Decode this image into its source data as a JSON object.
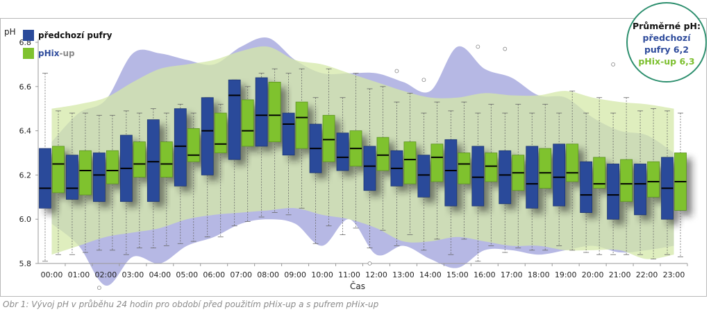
{
  "caption": "Obr 1: Vývoj pH v průběhu 24 hodin pro období před použitím pHix-up a s pufrem pHix-up",
  "badge": {
    "title": "Průměrné pH:",
    "prev_line1": "předchozí",
    "prev_line2": "pufry 6,2",
    "phix_line": "pHix-up 6,3"
  },
  "legend": {
    "prev_label": "předchozí pufry",
    "phix_label_main": "pHix",
    "phix_label_suffix": "-up"
  },
  "colors": {
    "prev": "#2a4a9a",
    "phix": "#7fc22e",
    "prev_band": "#a9abdf",
    "phix_band": "#d4e8a8",
    "overlap_band": "#9fb8a8",
    "badge_border": "#2d8f6e"
  },
  "chart_data": {
    "type": "box",
    "ylabel": "pH",
    "xlabel": "Čas",
    "ylim": [
      5.8,
      6.8
    ],
    "yticks": [
      "5.8",
      "6.0",
      "6.2",
      "6.4",
      "6.6",
      "6.8"
    ],
    "ytick_values": [
      5.8,
      6.0,
      6.2,
      6.4,
      6.6,
      6.8
    ],
    "categories": [
      "00:00",
      "01:00",
      "02:00",
      "03:00",
      "04:00",
      "05:00",
      "06:00",
      "07:00",
      "08:00",
      "09:00",
      "10:00",
      "11:00",
      "12:00",
      "13:00",
      "14:00",
      "15:00",
      "16:00",
      "17:00",
      "18:00",
      "19:00",
      "20:00",
      "21:00",
      "22:00",
      "23:00"
    ],
    "series": [
      {
        "name": "předchozí pufry",
        "q1": [
          6.05,
          6.09,
          6.08,
          6.08,
          6.08,
          6.15,
          6.2,
          6.27,
          6.33,
          6.29,
          6.21,
          6.22,
          6.13,
          6.15,
          6.1,
          6.06,
          6.06,
          6.07,
          6.05,
          6.06,
          6.03,
          6.0,
          6.02,
          6.0
        ],
        "median": [
          6.14,
          6.14,
          6.2,
          6.23,
          6.26,
          6.33,
          6.4,
          6.56,
          6.47,
          6.43,
          6.32,
          6.28,
          6.24,
          6.23,
          6.2,
          6.22,
          6.19,
          6.2,
          6.16,
          6.19,
          6.11,
          6.11,
          6.16,
          6.14
        ],
        "q3": [
          6.32,
          6.29,
          6.3,
          6.38,
          6.45,
          6.5,
          6.55,
          6.63,
          6.64,
          6.48,
          6.43,
          6.39,
          6.33,
          6.31,
          6.29,
          6.36,
          6.33,
          6.31,
          6.33,
          6.34,
          6.26,
          6.25,
          6.25,
          6.28
        ],
        "whisker_low": [
          5.81,
          5.84,
          5.86,
          5.84,
          5.87,
          5.89,
          5.92,
          5.97,
          6.01,
          6.02,
          5.89,
          5.93,
          5.87,
          5.88,
          5.86,
          5.84,
          5.81,
          5.85,
          5.86,
          5.88,
          5.85,
          5.84,
          5.84,
          5.84
        ],
        "whisker_high": [
          6.66,
          6.48,
          6.47,
          6.49,
          6.5,
          6.52,
          6.55,
          6.63,
          6.66,
          6.66,
          6.55,
          6.55,
          6.59,
          6.53,
          6.48,
          6.49,
          6.48,
          6.48,
          6.48,
          6.48,
          6.48,
          6.48,
          6.49,
          6.49
        ],
        "outliers": [
          [
            2,
            5.69
          ],
          [
            12,
            5.8
          ],
          [
            13,
            6.67
          ],
          [
            14,
            6.63
          ],
          [
            16,
            6.78
          ],
          [
            17,
            6.77
          ],
          [
            21,
            6.7
          ]
        ]
      },
      {
        "name": "pHix-up",
        "q1": [
          6.12,
          6.11,
          6.16,
          6.19,
          6.19,
          6.26,
          6.3,
          6.33,
          6.35,
          6.32,
          6.26,
          6.24,
          6.22,
          6.16,
          6.17,
          6.16,
          6.17,
          6.13,
          6.14,
          6.17,
          6.14,
          6.08,
          6.1,
          6.04
        ],
        "median": [
          6.25,
          6.22,
          6.22,
          6.25,
          6.25,
          6.29,
          6.34,
          6.4,
          6.47,
          6.46,
          6.36,
          6.32,
          6.29,
          6.27,
          6.28,
          6.25,
          6.24,
          6.21,
          6.21,
          6.21,
          6.16,
          6.16,
          6.17,
          6.17
        ],
        "q3": [
          6.33,
          6.31,
          6.31,
          6.35,
          6.35,
          6.41,
          6.48,
          6.54,
          6.62,
          6.53,
          6.47,
          6.4,
          6.37,
          6.35,
          6.34,
          6.3,
          6.3,
          6.29,
          6.32,
          6.34,
          6.28,
          6.27,
          6.26,
          6.3
        ],
        "whisker_low": [
          5.84,
          5.85,
          5.86,
          5.87,
          5.88,
          5.9,
          5.92,
          5.99,
          6.03,
          6.05,
          5.97,
          5.96,
          5.95,
          5.93,
          5.91,
          5.91,
          5.88,
          5.87,
          5.86,
          5.86,
          5.84,
          5.84,
          5.82,
          5.83
        ],
        "whisker_high": [
          6.49,
          6.48,
          6.47,
          6.48,
          6.48,
          6.48,
          6.52,
          6.6,
          6.68,
          6.68,
          6.68,
          6.66,
          6.6,
          6.57,
          6.53,
          6.53,
          6.52,
          6.52,
          6.52,
          6.58,
          6.55,
          6.55,
          6.5,
          6.48
        ],
        "outliers": []
      }
    ],
    "band_prev_upper": [
      6.35,
      6.48,
      6.54,
      6.75,
      6.75,
      6.72,
      6.7,
      6.78,
      6.82,
      6.72,
      6.66,
      6.66,
      6.66,
      6.62,
      6.58,
      6.78,
      6.68,
      6.64,
      6.56,
      6.55,
      6.46,
      6.4,
      6.38,
      6.3
    ],
    "band_prev_lower": [
      5.98,
      5.88,
      5.7,
      5.83,
      5.8,
      5.88,
      5.92,
      5.98,
      6.0,
      5.98,
      5.88,
      6.0,
      5.84,
      5.88,
      5.82,
      5.78,
      5.86,
      5.86,
      5.84,
      5.86,
      5.88,
      5.85,
      5.86,
      5.88
    ],
    "band_phix_upper": [
      6.5,
      6.52,
      6.55,
      6.62,
      6.68,
      6.7,
      6.72,
      6.76,
      6.78,
      6.72,
      6.7,
      6.66,
      6.62,
      6.58,
      6.55,
      6.55,
      6.57,
      6.56,
      6.56,
      6.58,
      6.55,
      6.53,
      6.52,
      6.5
    ],
    "band_phix_lower": [
      5.84,
      5.88,
      5.92,
      5.94,
      5.96,
      6.0,
      6.02,
      6.03,
      6.04,
      6.05,
      6.02,
      6.0,
      5.96,
      5.9,
      5.9,
      5.92,
      5.9,
      5.88,
      5.88,
      5.86,
      5.86,
      5.86,
      5.82,
      5.84
    ]
  }
}
